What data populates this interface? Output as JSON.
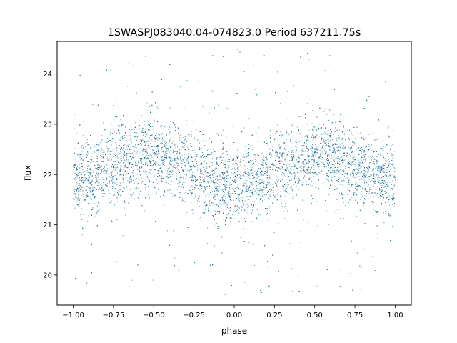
{
  "chart_data": {
    "type": "scatter",
    "title": "1SWASPJ083040.04-074823.0 Period 637211.75s",
    "xlabel": "phase",
    "ylabel": "flux",
    "xlim": [
      -1.1,
      1.1
    ],
    "ylim": [
      19.4,
      24.65
    ],
    "grid": false,
    "legend": "none",
    "point_color": "#1f77b4",
    "x_ticks": [
      -1.0,
      -0.75,
      -0.5,
      -0.25,
      0.0,
      0.25,
      0.5,
      0.75,
      1.0
    ],
    "x_tick_labels": [
      "−1.00",
      "−0.75",
      "−0.50",
      "−0.25",
      "0.00",
      "0.25",
      "0.50",
      "0.75",
      "1.00"
    ],
    "y_ticks": [
      20,
      21,
      22,
      23,
      24
    ],
    "y_tick_labels": [
      "20",
      "21",
      "22",
      "23",
      "24"
    ],
    "series": [
      {
        "phase_range": [
          -1.0,
          1.0
        ],
        "profile": {
          "phase": [
            -1.0,
            -0.9,
            -0.8,
            -0.7,
            -0.6,
            -0.5,
            -0.4,
            -0.3,
            -0.2,
            -0.1,
            0.0,
            0.1,
            0.2,
            0.3,
            0.4,
            0.5,
            0.6,
            0.7,
            0.8,
            0.9,
            1.0
          ],
          "flux": [
            21.85,
            21.95,
            22.15,
            22.25,
            22.35,
            22.4,
            22.3,
            22.15,
            21.95,
            21.85,
            21.8,
            21.85,
            21.95,
            22.15,
            22.3,
            22.4,
            22.35,
            22.25,
            22.05,
            21.9,
            21.85
          ]
        },
        "scatter_sigma": 0.38,
        "y_extent": [
          19.6,
          24.5
        ]
      }
    ]
  }
}
